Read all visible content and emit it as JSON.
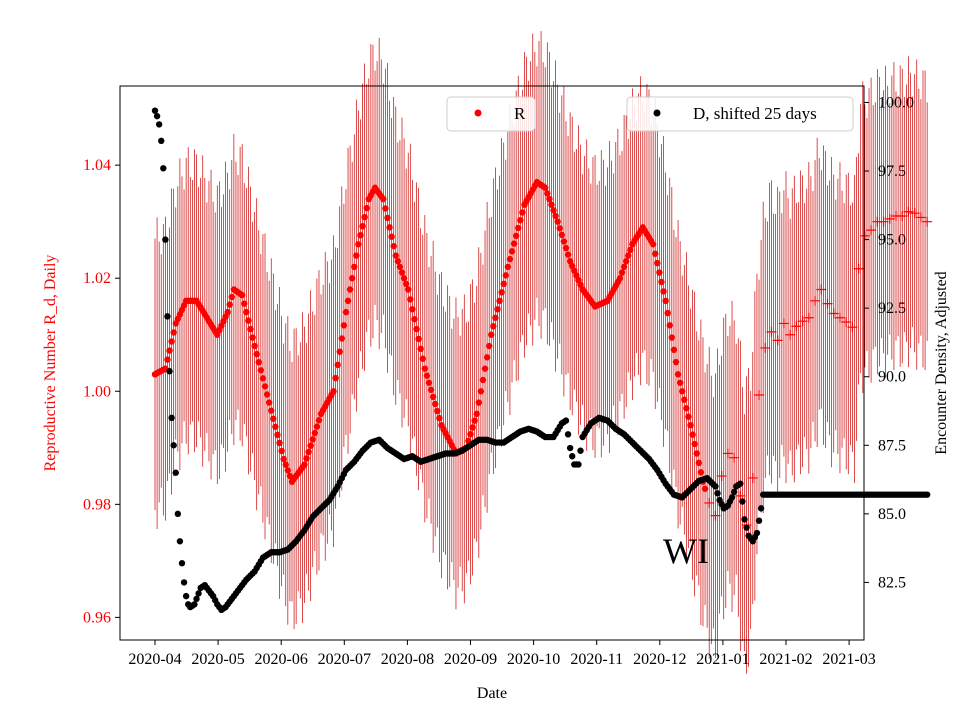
{
  "chart_data": {
    "type": "scatter",
    "xlabel": "Date",
    "x_ticks": [
      "2020-04",
      "2020-05",
      "2020-06",
      "2020-07",
      "2020-08",
      "2020-09",
      "2020-10",
      "2020-11",
      "2020-12",
      "2021-01",
      "2021-02",
      "2021-03"
    ],
    "annotation": "WI",
    "left_axis": {
      "label": "Reproductive Number R_d, Daily",
      "color": "#ff0000",
      "ticks": [
        "0.96",
        "0.98",
        "1.00",
        "1.02",
        "1.04"
      ],
      "ylim": [
        0.956,
        1.054
      ]
    },
    "right_axis": {
      "label": "Encounter Density, Adjusted",
      "color": "#000000",
      "ticks": [
        "82.5",
        "85.0",
        "87.5",
        "90.0",
        "92.5",
        "95.0",
        "97.5",
        "100.0"
      ],
      "ylim": [
        80.4,
        100.6
      ]
    },
    "series_R": {
      "name": "R",
      "color": "#ff0000",
      "error_halfwidth": 0.024,
      "estimated_after_day": 265,
      "points": [
        [
          0,
          1.003
        ],
        [
          5,
          1.004
        ],
        [
          10,
          1.012
        ],
        [
          15,
          1.016
        ],
        [
          20,
          1.016
        ],
        [
          25,
          1.013
        ],
        [
          30,
          1.01
        ],
        [
          35,
          1.014
        ],
        [
          38,
          1.018
        ],
        [
          42,
          1.017
        ],
        [
          48,
          1.008
        ],
        [
          55,
          0.998
        ],
        [
          62,
          0.988
        ],
        [
          66,
          0.984
        ],
        [
          72,
          0.987
        ],
        [
          80,
          0.996
        ],
        [
          86,
          1.0
        ],
        [
          92,
          1.014
        ],
        [
          98,
          1.026
        ],
        [
          103,
          1.034
        ],
        [
          106,
          1.036
        ],
        [
          110,
          1.034
        ],
        [
          116,
          1.024
        ],
        [
          122,
          1.018
        ],
        [
          130,
          1.004
        ],
        [
          138,
          0.994
        ],
        [
          145,
          0.989
        ],
        [
          150,
          0.99
        ],
        [
          155,
          0.996
        ],
        [
          162,
          1.01
        ],
        [
          170,
          1.022
        ],
        [
          178,
          1.033
        ],
        [
          184,
          1.037
        ],
        [
          188,
          1.036
        ],
        [
          194,
          1.03
        ],
        [
          200,
          1.023
        ],
        [
          206,
          1.018
        ],
        [
          212,
          1.015
        ],
        [
          218,
          1.016
        ],
        [
          224,
          1.02
        ],
        [
          230,
          1.026
        ],
        [
          235,
          1.029
        ],
        [
          240,
          1.026
        ],
        [
          246,
          1.016
        ],
        [
          252,
          1.003
        ],
        [
          258,
          0.994
        ],
        [
          264,
          0.984
        ],
        [
          268,
          0.979
        ],
        [
          270,
          0.978
        ],
        [
          273,
          0.985
        ],
        [
          276,
          0.989
        ],
        [
          280,
          0.988
        ],
        [
          284,
          0.975
        ],
        [
          287,
          0.979
        ],
        [
          290,
          0.996
        ],
        [
          293,
          1.006
        ],
        [
          296,
          1.011
        ],
        [
          300,
          1.009
        ],
        [
          303,
          1.012
        ],
        [
          306,
          1.01
        ],
        [
          310,
          1.012
        ],
        [
          315,
          1.013
        ],
        [
          318,
          1.016
        ],
        [
          320,
          1.019
        ],
        [
          322,
          1.017
        ],
        [
          326,
          1.014
        ],
        [
          330,
          1.013
        ],
        [
          334,
          1.012
        ],
        [
          337,
          1.011
        ],
        [
          340,
          1.027
        ],
        [
          344,
          1.028
        ],
        [
          348,
          1.03
        ],
        [
          352,
          1.03
        ],
        [
          356,
          1.031
        ],
        [
          360,
          1.031
        ],
        [
          364,
          1.032
        ],
        [
          368,
          1.031
        ],
        [
          372,
          1.03
        ]
      ]
    },
    "series_D": {
      "name": "D, shifted 25 days",
      "color": "#000000",
      "points": [
        [
          0,
          99.7
        ],
        [
          1,
          99.5
        ],
        [
          2,
          99.2
        ],
        [
          3,
          98.6
        ],
        [
          4,
          97.6
        ],
        [
          5,
          95.0
        ],
        [
          6,
          92.2
        ],
        [
          7,
          90.2
        ],
        [
          8,
          88.5
        ],
        [
          9,
          87.5
        ],
        [
          10,
          86.5
        ],
        [
          11,
          85.0
        ],
        [
          12,
          84.0
        ],
        [
          13,
          83.2
        ],
        [
          14,
          82.5
        ],
        [
          15,
          82.0
        ],
        [
          16,
          81.7
        ],
        [
          17,
          81.6
        ],
        [
          19,
          81.7
        ],
        [
          20,
          81.9
        ],
        [
          22,
          82.3
        ],
        [
          24,
          82.4
        ],
        [
          26,
          82.2
        ],
        [
          28,
          82.0
        ],
        [
          30,
          81.7
        ],
        [
          32,
          81.5
        ],
        [
          34,
          81.6
        ],
        [
          36,
          81.8
        ],
        [
          38,
          82.0
        ],
        [
          40,
          82.2
        ],
        [
          44,
          82.6
        ],
        [
          48,
          82.9
        ],
        [
          52,
          83.4
        ],
        [
          56,
          83.6
        ],
        [
          60,
          83.6
        ],
        [
          64,
          83.7
        ],
        [
          68,
          84.0
        ],
        [
          72,
          84.4
        ],
        [
          76,
          84.9
        ],
        [
          80,
          85.2
        ],
        [
          84,
          85.5
        ],
        [
          88,
          86.0
        ],
        [
          92,
          86.6
        ],
        [
          96,
          86.9
        ],
        [
          100,
          87.3
        ],
        [
          104,
          87.6
        ],
        [
          108,
          87.7
        ],
        [
          112,
          87.4
        ],
        [
          116,
          87.2
        ],
        [
          120,
          87.0
        ],
        [
          124,
          87.1
        ],
        [
          128,
          86.9
        ],
        [
          132,
          87.0
        ],
        [
          136,
          87.1
        ],
        [
          140,
          87.2
        ],
        [
          144,
          87.2
        ],
        [
          148,
          87.3
        ],
        [
          152,
          87.5
        ],
        [
          156,
          87.7
        ],
        [
          160,
          87.7
        ],
        [
          164,
          87.6
        ],
        [
          168,
          87.6
        ],
        [
          172,
          87.8
        ],
        [
          176,
          88.0
        ],
        [
          180,
          88.1
        ],
        [
          184,
          88.0
        ],
        [
          188,
          87.8
        ],
        [
          192,
          87.8
        ],
        [
          196,
          88.3
        ],
        [
          198,
          88.4
        ],
        [
          200,
          87.4
        ],
        [
          202,
          86.8
        ],
        [
          204,
          86.8
        ],
        [
          206,
          87.8
        ],
        [
          210,
          88.3
        ],
        [
          214,
          88.5
        ],
        [
          218,
          88.4
        ],
        [
          222,
          88.1
        ],
        [
          226,
          87.9
        ],
        [
          230,
          87.6
        ],
        [
          234,
          87.3
        ],
        [
          238,
          87.0
        ],
        [
          242,
          86.6
        ],
        [
          246,
          86.1
        ],
        [
          250,
          85.7
        ],
        [
          254,
          85.6
        ],
        [
          258,
          85.9
        ],
        [
          262,
          86.2
        ],
        [
          266,
          86.3
        ],
        [
          270,
          86.0
        ],
        [
          272,
          85.5
        ],
        [
          274,
          85.2
        ],
        [
          276,
          85.3
        ],
        [
          278,
          85.6
        ],
        [
          280,
          86.0
        ],
        [
          282,
          86.1
        ],
        [
          284,
          84.8
        ],
        [
          286,
          84.2
        ],
        [
          288,
          84.0
        ],
        [
          290,
          84.3
        ],
        [
          292,
          85.2
        ],
        [
          293,
          85.7
        ],
        [
          300,
          85.7
        ],
        [
          310,
          85.7
        ],
        [
          320,
          85.7
        ],
        [
          330,
          85.7
        ],
        [
          340,
          85.7
        ],
        [
          350,
          85.7
        ],
        [
          360,
          85.7
        ],
        [
          372,
          85.7
        ]
      ]
    },
    "legend_R": {
      "label": "R",
      "placement": "upper-center"
    },
    "legend_D": {
      "label": "D, shifted 25 days",
      "placement": "upper-right"
    }
  }
}
